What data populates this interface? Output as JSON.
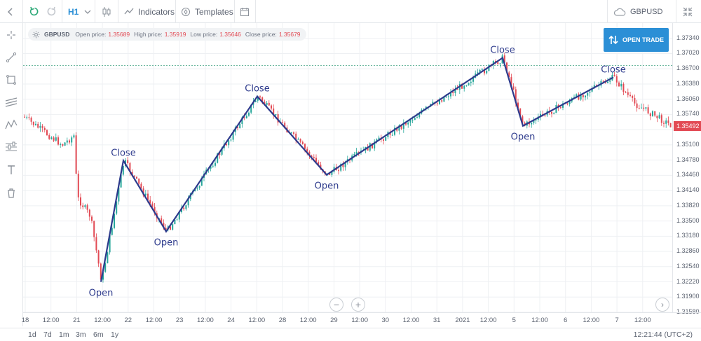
{
  "toolbar": {
    "timeframe": "H1",
    "indicators_label": "Indicators",
    "templates_label": "Templates",
    "symbol": "GBPUSD"
  },
  "info": {
    "symbol": "GBPUSD",
    "open_label": "Open price:",
    "open": "1.35689",
    "high_label": "High price:",
    "high": "1.35919",
    "low_label": "Low price:",
    "low": "1.35646",
    "close_label": "Close price:",
    "close": "1.35679"
  },
  "open_trade_label": "OPEN TRADE",
  "price_axis": {
    "ticks": [
      "1.37340",
      "1.37020",
      "1.36700",
      "1.36380",
      "1.36060",
      "1.35740",
      "1.35420",
      "1.35100",
      "1.34780",
      "1.34460",
      "1.34140",
      "1.33820",
      "1.33500",
      "1.33180",
      "1.32860",
      "1.32540",
      "1.32220",
      "1.31900",
      "1.31580"
    ],
    "current_price": "1.35492",
    "current_color": "#e24a54"
  },
  "time_axis": {
    "ticks": [
      "18",
      "12:00",
      "21",
      "12:00",
      "22",
      "12:00",
      "23",
      "12:00",
      "24",
      "12:00",
      "28",
      "12:00",
      "29",
      "12:00",
      "30",
      "12:00",
      "31",
      "2021",
      "12:00",
      "5",
      "12:00",
      "6",
      "12:00",
      "7",
      "12:00"
    ]
  },
  "periods": [
    "1d",
    "7d",
    "1m",
    "3m",
    "6m",
    "1y"
  ],
  "clock": "12:21:44 (UTC+2)",
  "colors": {
    "bull": "#26a69a",
    "bear": "#e24a54",
    "annotation": "#2d3a8c",
    "accent": "#2b8fd6"
  },
  "chart_data": {
    "type": "candlestick",
    "ylim": [
      1.3158,
      1.3766
    ],
    "last_price": 1.35492,
    "reference_line": 1.3677,
    "annotations": [
      {
        "label": "Open",
        "price": 1.3222
      },
      {
        "label": "Close",
        "price": 1.3477
      },
      {
        "label": "Open",
        "price": 1.3328
      },
      {
        "label": "Close",
        "price": 1.3612
      },
      {
        "label": "Open",
        "price": 1.3447
      },
      {
        "label": "Close",
        "price": 1.3693
      },
      {
        "label": "Open",
        "price": 1.355
      },
      {
        "label": "Close",
        "price": 1.3652
      }
    ]
  }
}
